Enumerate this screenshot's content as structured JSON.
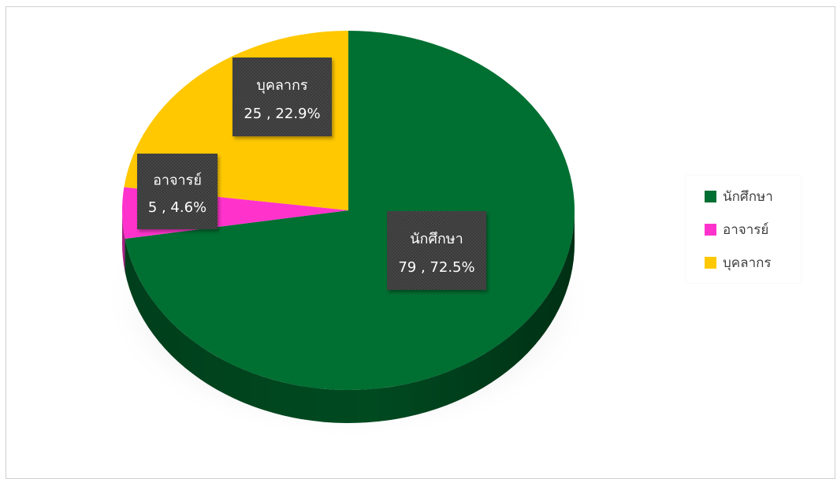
{
  "chart_data": {
    "type": "pie",
    "title": "",
    "categories": [
      "นักศึกษา",
      "อาจารย์",
      "บุคลากร"
    ],
    "values": [
      79,
      5,
      25
    ],
    "percentages": [
      "72.5%",
      "4.6%",
      "22.9%"
    ],
    "data_labels": [
      {
        "name": "นักศึกษา",
        "value_text": "79 , 72.5%"
      },
      {
        "name": "อาจารย์",
        "value_text": "5 , 4.6%"
      },
      {
        "name": "บุคลากร",
        "value_text": "25 , 22.9%"
      }
    ],
    "colors": [
      "#006F32",
      "#FF33CC",
      "#FFC800"
    ],
    "legend_placement": "right",
    "style": "3d"
  },
  "legend": {
    "items": [
      {
        "label": "นักศึกษา",
        "color": "#006F32"
      },
      {
        "label": "อาจารย์",
        "color": "#FF33CC"
      },
      {
        "label": "บุคลากร",
        "color": "#FFC800"
      }
    ]
  }
}
